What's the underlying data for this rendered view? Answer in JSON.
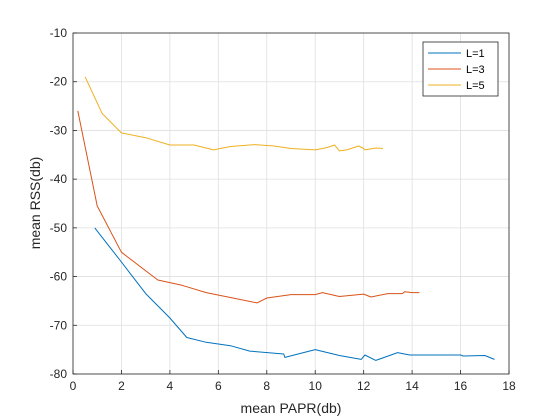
{
  "chart_data": {
    "type": "line",
    "title": "",
    "xlabel": "mean PAPR(db)",
    "ylabel": "mean RSS(db)",
    "xlim": [
      0,
      18
    ],
    "ylim": [
      -80,
      -10
    ],
    "xticks": [
      0,
      2,
      4,
      6,
      8,
      10,
      12,
      14,
      16,
      18
    ],
    "yticks": [
      -80,
      -70,
      -60,
      -50,
      -40,
      -30,
      -20,
      -10
    ],
    "grid": true,
    "legend_position": "top-right",
    "series": [
      {
        "name": "L=1",
        "color": "#0072BD",
        "x": [
          0.9,
          2.0,
          3.0,
          4.0,
          4.7,
          5.5,
          6.5,
          7.3,
          8.7,
          8.75,
          10.0,
          11.0,
          11.9,
          12.05,
          12.5,
          13.4,
          13.9,
          14.0,
          16.0,
          16.1,
          17.0,
          17.4
        ],
        "y": [
          -50.0,
          -57.0,
          -63.5,
          -68.5,
          -72.5,
          -73.5,
          -74.2,
          -75.3,
          -75.9,
          -76.6,
          -75.0,
          -76.2,
          -77.0,
          -76.1,
          -77.2,
          -75.6,
          -76.1,
          -76.1,
          -76.1,
          -76.3,
          -76.2,
          -77.0
        ]
      },
      {
        "name": "L=3",
        "color": "#D95319",
        "x": [
          0.2,
          1.0,
          2.0,
          3.5,
          4.5,
          5.5,
          6.5,
          7.6,
          8.0,
          9.0,
          10.0,
          10.3,
          11.0,
          12.0,
          12.3,
          13.0,
          13.6,
          13.7,
          14.0,
          14.3
        ],
        "y": [
          -26.0,
          -45.5,
          -55.0,
          -60.7,
          -61.8,
          -63.3,
          -64.3,
          -65.4,
          -64.4,
          -63.7,
          -63.7,
          -63.3,
          -64.1,
          -63.6,
          -64.2,
          -63.5,
          -63.5,
          -63.1,
          -63.3,
          -63.3
        ]
      },
      {
        "name": "L=5",
        "color": "#EDB120",
        "x": [
          0.5,
          1.2,
          2.0,
          3.0,
          4.0,
          5.0,
          5.8,
          6.5,
          7.5,
          8.3,
          9.0,
          10.0,
          10.5,
          10.8,
          11.0,
          11.3,
          11.8,
          12.0,
          12.05,
          12.5,
          12.8
        ],
        "y": [
          -19.0,
          -26.5,
          -30.5,
          -31.5,
          -33.0,
          -33.0,
          -34.0,
          -33.3,
          -32.9,
          -33.2,
          -33.7,
          -34.0,
          -33.5,
          -33.0,
          -34.2,
          -34.0,
          -33.2,
          -33.7,
          -34.0,
          -33.6,
          -33.7
        ]
      }
    ]
  }
}
